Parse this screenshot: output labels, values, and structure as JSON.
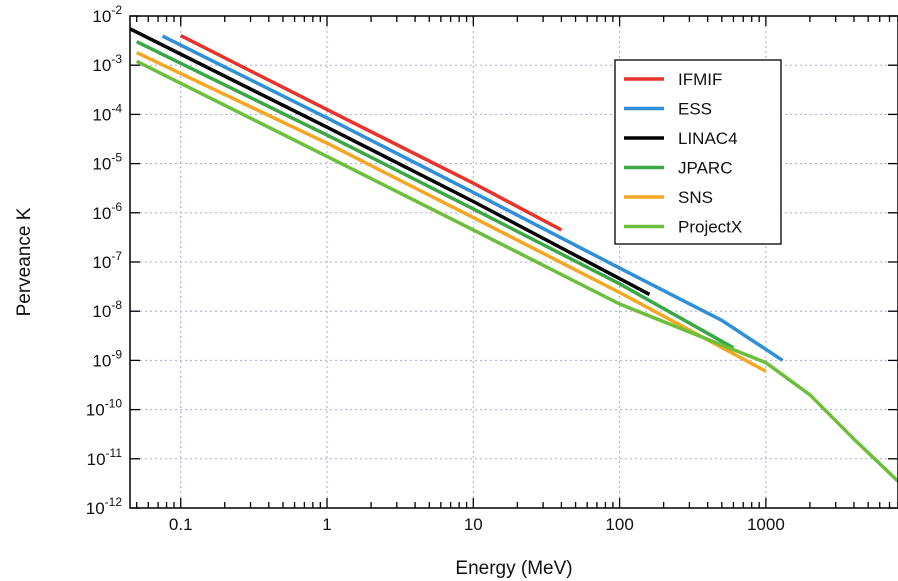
{
  "chart_data": {
    "type": "line",
    "title": "",
    "xlabel": "Energy (MeV)",
    "ylabel": "Perveance K",
    "x_scale": "log",
    "y_scale": "log",
    "xlim": [
      0.045,
      8000
    ],
    "ylim": [
      1e-12,
      0.01
    ],
    "grid": true,
    "legend_position": "top-right",
    "x_ticks": [
      {
        "value": 0.1,
        "label": "0.1"
      },
      {
        "value": 1,
        "label": "1"
      },
      {
        "value": 10,
        "label": "10"
      },
      {
        "value": 100,
        "label": "100"
      },
      {
        "value": 1000,
        "label": "1000"
      }
    ],
    "y_ticks": [
      {
        "value": 1e-12,
        "base": "10",
        "exp": "-12"
      },
      {
        "value": 1e-11,
        "base": "10",
        "exp": "-11"
      },
      {
        "value": 1e-10,
        "base": "10",
        "exp": "-10"
      },
      {
        "value": 1e-09,
        "base": "10",
        "exp": "-9"
      },
      {
        "value": 1e-08,
        "base": "10",
        "exp": "-8"
      },
      {
        "value": 1e-07,
        "base": "10",
        "exp": "-7"
      },
      {
        "value": 1e-06,
        "base": "10",
        "exp": "-6"
      },
      {
        "value": 1e-05,
        "base": "10",
        "exp": "-5"
      },
      {
        "value": 0.0001,
        "base": "10",
        "exp": "-4"
      },
      {
        "value": 0.001,
        "base": "10",
        "exp": "-3"
      },
      {
        "value": 0.01,
        "base": "10",
        "exp": "-2"
      }
    ],
    "series": [
      {
        "name": "IFMIF",
        "color": "#e8332a",
        "x": [
          0.1,
          1,
          10,
          40
        ],
        "y": [
          0.004,
          0.000125,
          4e-06,
          4.5e-07
        ]
      },
      {
        "name": "ESS",
        "color": "#2f8fd8",
        "x": [
          0.075,
          1,
          10,
          100,
          500,
          1300
        ],
        "y": [
          0.0039,
          8.5e-05,
          2.6e-06,
          7.5e-08,
          6.5e-09,
          1e-09
        ]
      },
      {
        "name": "LINAC4",
        "color": "#000000",
        "x": [
          0.045,
          1,
          10,
          160
        ],
        "y": [
          0.0055,
          5.5e-05,
          1.7e-06,
          2.2e-08
        ]
      },
      {
        "name": "JPARC",
        "color": "#3aa845",
        "x": [
          0.05,
          1,
          10,
          100,
          600
        ],
        "y": [
          0.003,
          3.8e-05,
          1.2e-06,
          3.6e-08,
          1.8e-09
        ]
      },
      {
        "name": "SNS",
        "color": "#f5a623",
        "x": [
          0.05,
          1,
          10,
          100,
          1000
        ],
        "y": [
          0.0018,
          2.6e-05,
          8e-07,
          2.4e-08,
          6e-10
        ]
      },
      {
        "name": "ProjectX",
        "color": "#6bbf3a",
        "x": [
          0.05,
          1,
          10,
          100,
          1000,
          2000,
          4000,
          8000
        ],
        "y": [
          0.0012,
          1.4e-05,
          4.5e-07,
          1.4e-08,
          9e-10,
          2e-10,
          2.5e-11,
          3.5e-12
        ]
      }
    ]
  }
}
